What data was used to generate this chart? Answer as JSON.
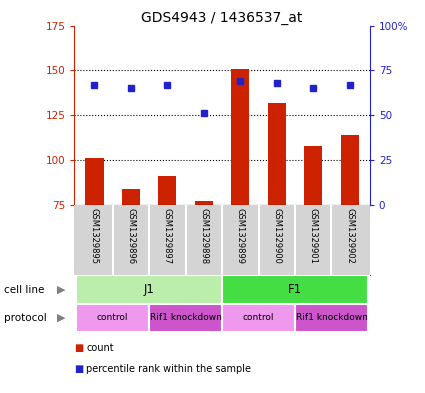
{
  "title": "GDS4943 / 1436537_at",
  "samples": [
    "GSM1329895",
    "GSM1329896",
    "GSM1329897",
    "GSM1329898",
    "GSM1329899",
    "GSM1329900",
    "GSM1329901",
    "GSM1329902"
  ],
  "counts": [
    101,
    84,
    91,
    77,
    151,
    132,
    108,
    114
  ],
  "percentile_ranks": [
    67,
    65,
    67,
    51,
    69,
    68,
    65,
    67
  ],
  "ylim_left": [
    75,
    175
  ],
  "ylim_right": [
    0,
    100
  ],
  "yticks_left": [
    75,
    100,
    125,
    150,
    175
  ],
  "yticks_right": [
    0,
    25,
    50,
    75,
    100
  ],
  "ytick_labels_right": [
    "0",
    "25",
    "50",
    "75",
    "100%"
  ],
  "bar_color": "#cc2200",
  "dot_color": "#2222cc",
  "bar_bottom": 75,
  "cell_line_groups": [
    {
      "label": "J1",
      "start": 0,
      "end": 4,
      "color": "#bbeeaa"
    },
    {
      "label": "F1",
      "start": 4,
      "end": 8,
      "color": "#44dd44"
    }
  ],
  "protocol_groups": [
    {
      "label": "control",
      "start": 0,
      "end": 2,
      "color": "#ee99ee"
    },
    {
      "label": "Rif1 knockdown",
      "start": 2,
      "end": 4,
      "color": "#cc55cc"
    },
    {
      "label": "control",
      "start": 4,
      "end": 6,
      "color": "#ee99ee"
    },
    {
      "label": "Rif1 knockdown",
      "start": 6,
      "end": 8,
      "color": "#cc55cc"
    }
  ],
  "cell_line_label": "cell line",
  "protocol_label": "protocol",
  "legend_items": [
    {
      "label": "count",
      "color": "#cc2200"
    },
    {
      "label": "percentile rank within the sample",
      "color": "#2222cc"
    }
  ],
  "background_color": "#ffffff",
  "left_axis_color": "#cc2200",
  "right_axis_color": "#2222cc",
  "sample_box_color": "#d4d4d4",
  "sample_box_edge": "#ffffff"
}
